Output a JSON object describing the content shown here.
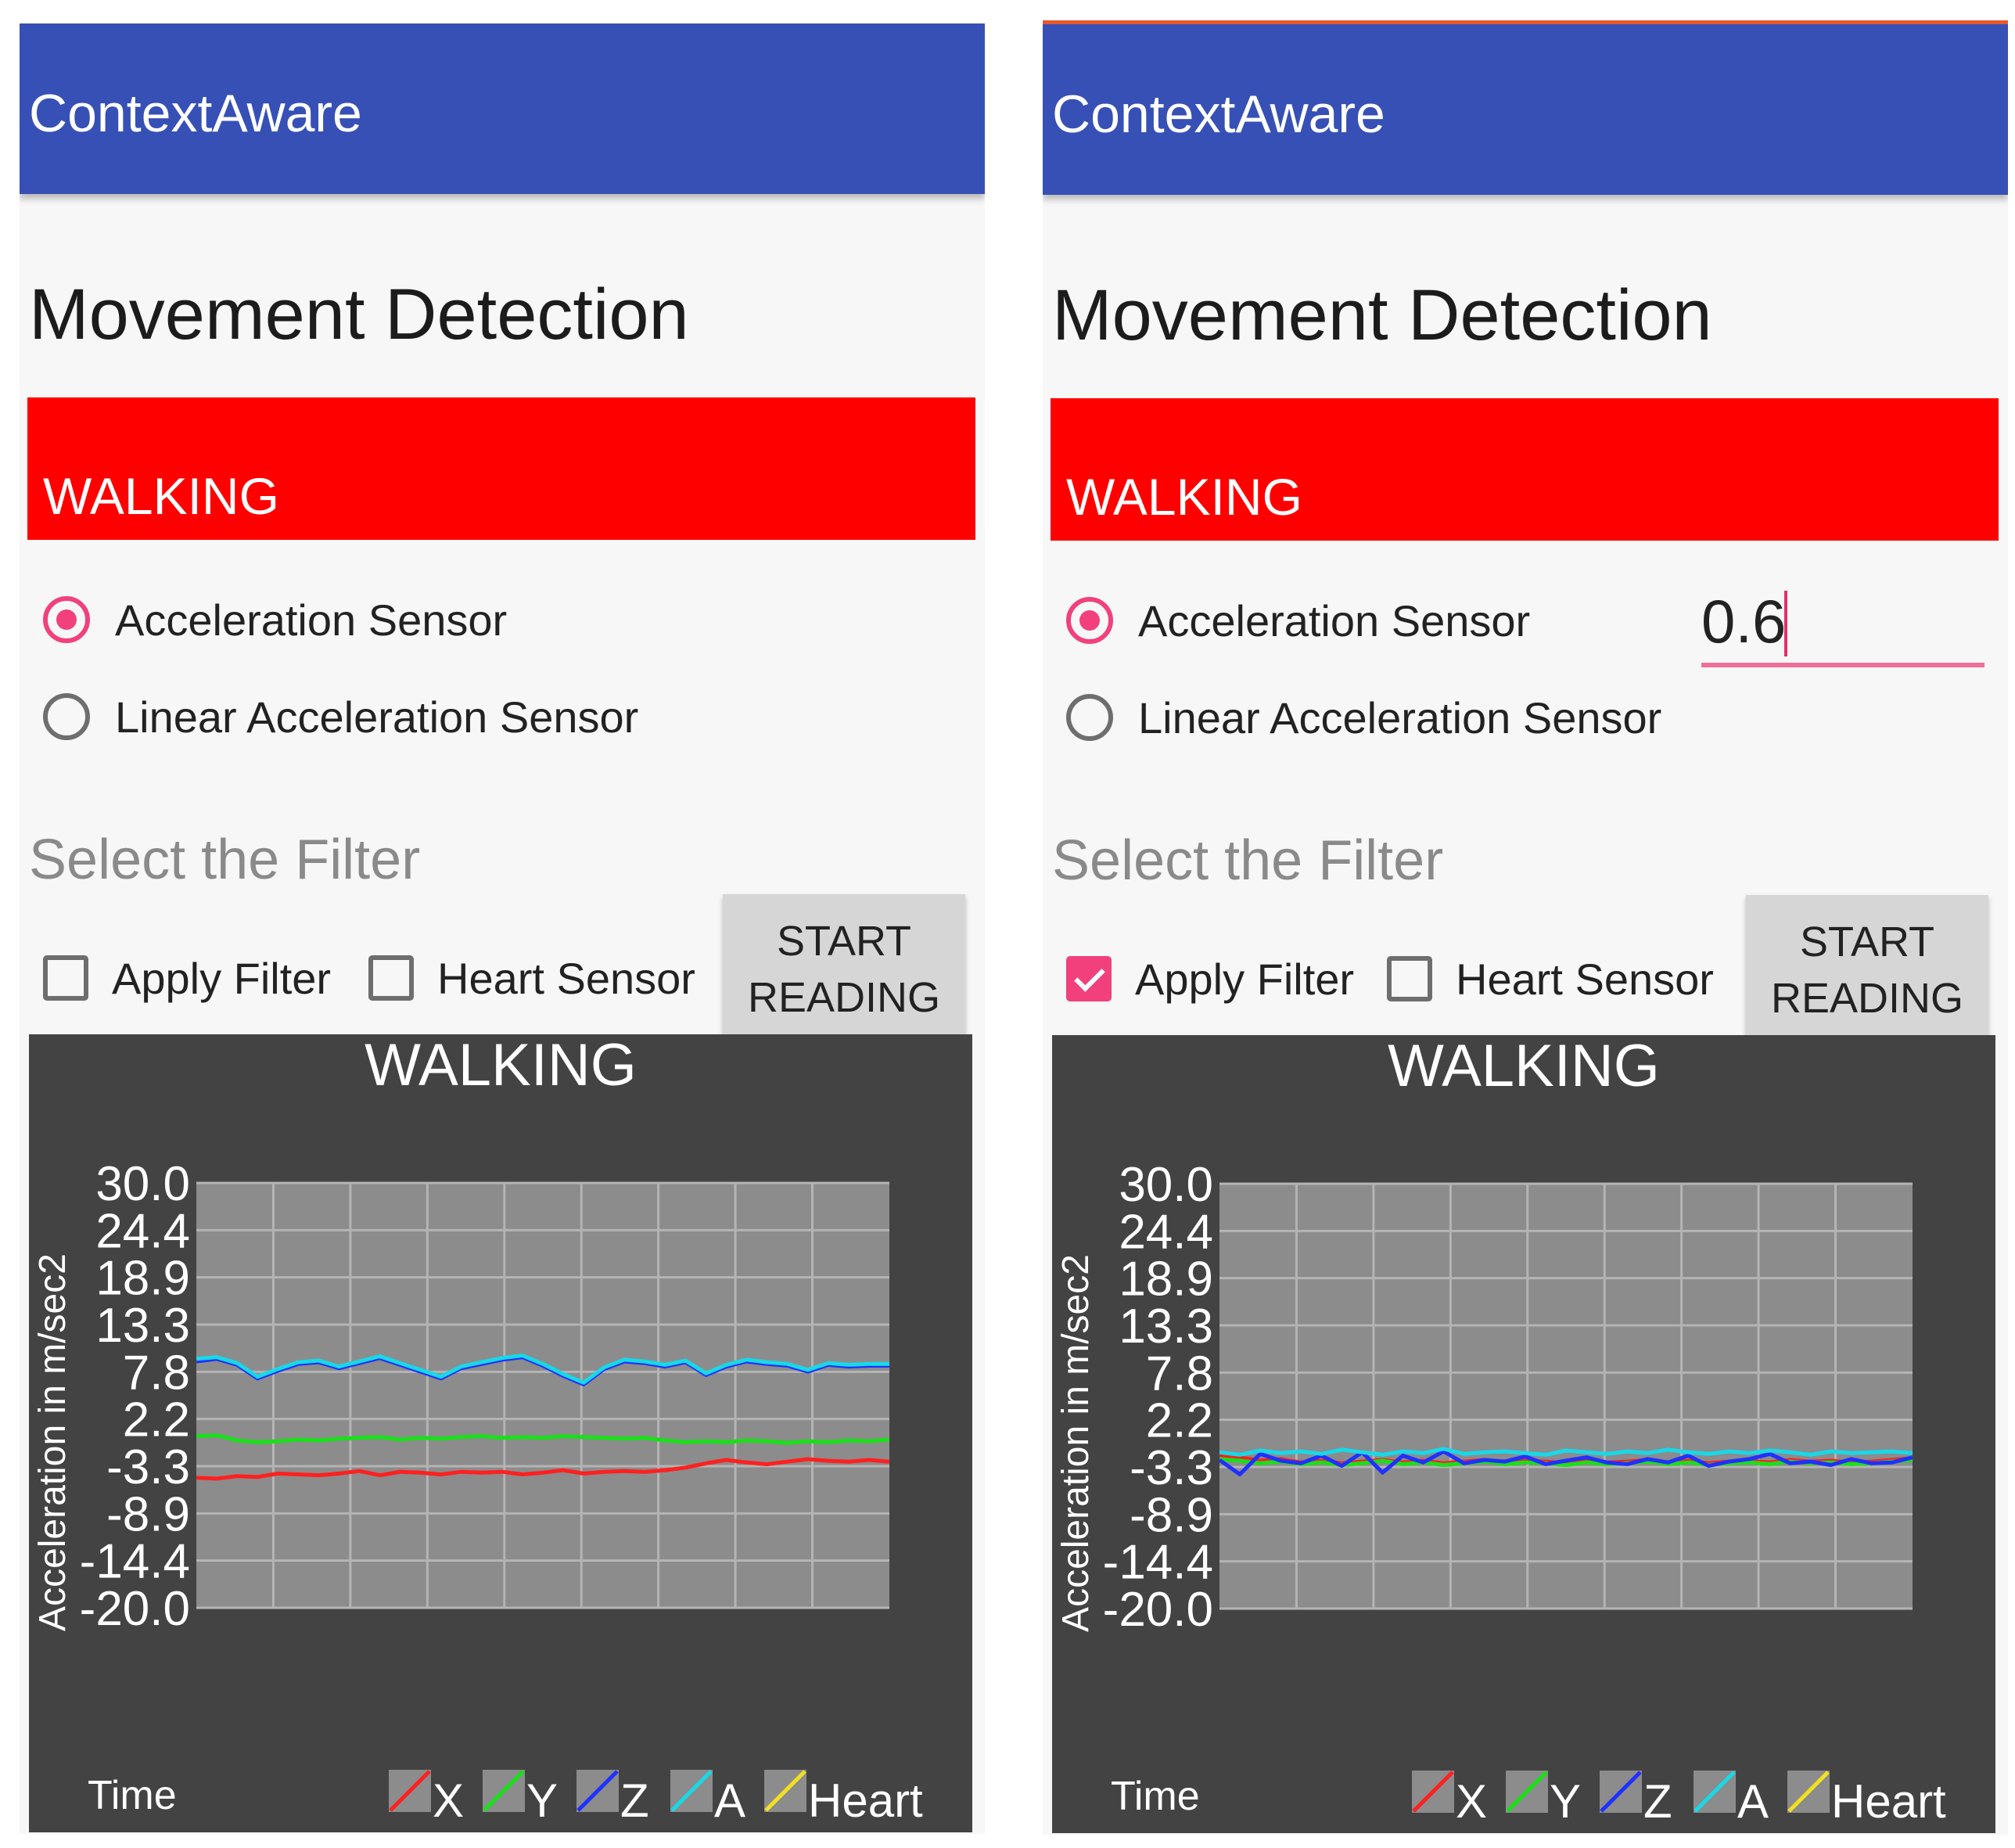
{
  "screens": [
    {
      "app_title": "ContextAware",
      "page_title": "Movement Detection",
      "status": "WALKING",
      "radios": [
        {
          "label": "Acceleration Sensor",
          "checked": true
        },
        {
          "label": "Linear Acceleration Sensor",
          "checked": false
        }
      ],
      "filter_value": "",
      "section_label": "Select the Filter",
      "checkboxes": [
        {
          "label": "Apply Filter",
          "checked": false
        },
        {
          "label": "Heart Sensor",
          "checked": false
        }
      ],
      "start_button": {
        "line1": "START",
        "line2": "READING"
      },
      "chart_data": {
        "type": "line",
        "title": "WALKING",
        "xlabel": "Time",
        "ylabel": "Acceleration in m/sec2",
        "yticks": [
          "30.0",
          "24.4",
          "18.9",
          "13.3",
          "7.8",
          "2.2",
          "-3.3",
          "-8.9",
          "-14.4",
          "-20.0"
        ],
        "ylim": [
          -20.0,
          30.0
        ],
        "grid": true,
        "legend": "bottom-right",
        "series": [
          {
            "name": "X",
            "color": "#ff2020",
            "values": [
              -4.7,
              -4.8,
              -4.5,
              -4.6,
              -4.2,
              -4.3,
              -4.4,
              -4.2,
              -3.9,
              -4.4,
              -4.0,
              -4.1,
              -4.3,
              -4.0,
              -4.1,
              -4.0,
              -4.3,
              -4.1,
              -3.8,
              -4.2,
              -4.0,
              -3.9,
              -4.0,
              -3.8,
              -3.5,
              -3.0,
              -2.6,
              -2.9,
              -3.1,
              -2.8,
              -2.5,
              -2.7,
              -2.8,
              -2.6,
              -2.8
            ]
          },
          {
            "name": "Y",
            "color": "#18e018",
            "values": [
              0.2,
              0.3,
              -0.3,
              -0.5,
              -0.4,
              -0.2,
              -0.3,
              -0.1,
              0.0,
              0.1,
              -0.2,
              0.0,
              -0.1,
              0.1,
              0.2,
              0.0,
              0.1,
              0.0,
              0.2,
              0.1,
              0.0,
              -0.1,
              0.0,
              -0.3,
              -0.5,
              -0.4,
              -0.5,
              -0.3,
              -0.4,
              -0.6,
              -0.4,
              -0.5,
              -0.3,
              -0.4,
              -0.2
            ]
          },
          {
            "name": "Z",
            "color": "#2030ff",
            "values": [
              9.0,
              9.3,
              8.6,
              7.0,
              7.9,
              8.7,
              8.9,
              8.2,
              8.8,
              9.4,
              8.6,
              7.8,
              7.0,
              8.2,
              8.7,
              9.2,
              9.5,
              8.5,
              7.3,
              6.3,
              8.1,
              9.0,
              8.8,
              8.4,
              8.9,
              7.4,
              8.4,
              9.0,
              8.7,
              8.5,
              7.8,
              8.6,
              8.4,
              8.5,
              8.5
            ]
          },
          {
            "name": "A",
            "color": "#18d8e8",
            "values": [
              9.3,
              9.5,
              8.8,
              7.2,
              8.1,
              8.9,
              9.1,
              8.4,
              9.0,
              9.6,
              8.8,
              8.0,
              7.2,
              8.4,
              8.9,
              9.4,
              9.7,
              8.7,
              7.5,
              6.5,
              8.3,
              9.2,
              9.0,
              8.6,
              9.1,
              7.6,
              8.6,
              9.2,
              8.9,
              8.7,
              8.0,
              8.8,
              8.6,
              8.7,
              8.7
            ]
          },
          {
            "name": "Heart",
            "color": "#f0e020",
            "values": []
          }
        ]
      }
    },
    {
      "app_title": "ContextAware",
      "page_title": "Movement Detection",
      "status": "WALKING",
      "radios": [
        {
          "label": "Acceleration Sensor",
          "checked": true
        },
        {
          "label": "Linear Acceleration Sensor",
          "checked": false
        }
      ],
      "filter_value": "0.6",
      "section_label": "Select the Filter",
      "checkboxes": [
        {
          "label": "Apply Filter",
          "checked": true
        },
        {
          "label": "Heart Sensor",
          "checked": false
        }
      ],
      "start_button": {
        "line1": "START",
        "line2": "READING"
      },
      "chart_data": {
        "type": "line",
        "title": "WALKING",
        "xlabel": "Time",
        "ylabel": "Acceleration in m/sec2",
        "yticks": [
          "30.0",
          "24.4",
          "18.9",
          "13.3",
          "7.8",
          "2.2",
          "-3.3",
          "-8.9",
          "-14.4",
          "-20.0"
        ],
        "ylim": [
          -20.0,
          30.0
        ],
        "grid": true,
        "legend": "bottom-right",
        "series": [
          {
            "name": "X",
            "color": "#ff2020",
            "values": [
              -2.0,
              -2.2,
              -2.6,
              -2.4,
              -2.8,
              -2.6,
              -2.9,
              -2.7,
              -2.5,
              -2.8,
              -2.6,
              -2.9,
              -2.7,
              -2.5,
              -2.8,
              -2.6,
              -2.7,
              -2.9,
              -2.6,
              -2.8,
              -2.7,
              -2.5,
              -2.8,
              -2.6,
              -2.9,
              -2.7,
              -2.6,
              -2.8,
              -2.5,
              -2.7,
              -2.6,
              -2.8,
              -2.7,
              -2.5,
              -2.3
            ]
          },
          {
            "name": "Y",
            "color": "#18e018",
            "values": [
              -2.4,
              -2.6,
              -2.9,
              -2.7,
              -3.0,
              -2.8,
              -3.1,
              -2.9,
              -2.6,
              -3.0,
              -2.8,
              -3.1,
              -2.9,
              -2.7,
              -3.0,
              -2.8,
              -2.9,
              -3.1,
              -2.8,
              -3.0,
              -2.9,
              -2.7,
              -3.0,
              -2.8,
              -3.1,
              -2.9,
              -2.8,
              -3.0,
              -2.7,
              -2.9,
              -2.8,
              -3.0,
              -2.9,
              -2.7,
              -2.5
            ]
          },
          {
            "name": "Z",
            "color": "#2030ff",
            "values": [
              -2.5,
              -4.2,
              -1.8,
              -2.6,
              -2.9,
              -2.0,
              -3.2,
              -1.6,
              -4.0,
              -2.0,
              -2.8,
              -1.5,
              -2.9,
              -2.5,
              -2.7,
              -2.1,
              -3.0,
              -2.6,
              -2.2,
              -2.8,
              -3.0,
              -2.4,
              -2.8,
              -2.0,
              -3.2,
              -2.7,
              -2.4,
              -1.8,
              -2.9,
              -2.7,
              -3.1,
              -2.4,
              -2.9,
              -2.8,
              -2.2
            ]
          },
          {
            "name": "A",
            "color": "#18d8e8",
            "values": [
              -1.6,
              -1.9,
              -1.4,
              -1.7,
              -1.5,
              -1.8,
              -1.3,
              -1.6,
              -1.9,
              -1.5,
              -1.7,
              -1.2,
              -1.8,
              -1.6,
              -1.5,
              -1.7,
              -1.9,
              -1.4,
              -1.6,
              -1.8,
              -1.5,
              -1.7,
              -1.3,
              -1.6,
              -1.8,
              -1.5,
              -1.7,
              -1.4,
              -1.6,
              -1.9,
              -1.5,
              -1.7,
              -1.6,
              -1.5,
              -1.7
            ]
          },
          {
            "name": "Heart",
            "color": "#f0e020",
            "values": []
          }
        ]
      }
    }
  ]
}
